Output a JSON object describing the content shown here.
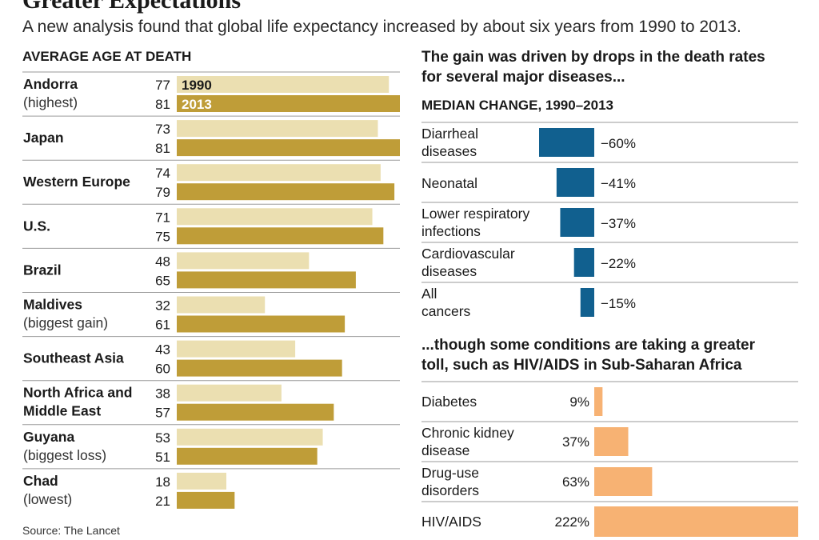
{
  "title": "Greater Expectations",
  "subtitle": "A new analysis found that global life expectancy increased by about six years from 1990 to 2013.",
  "source": "Source: The Lancet",
  "colors": {
    "bar_1990": "#ebdfb1",
    "bar_2013": "#bf9d38",
    "decline": "#11608f",
    "increase": "#f7b273",
    "rule": "#9a9a9a"
  },
  "chart_data": [
    {
      "type": "bar",
      "orientation": "horizontal",
      "title": "AVERAGE AGE AT DEATH",
      "legend": [
        "1990",
        "2013"
      ],
      "categories": [
        {
          "name": "Andorra",
          "note": "(highest)"
        },
        {
          "name": "Japan",
          "note": ""
        },
        {
          "name": "Western Europe",
          "note": ""
        },
        {
          "name": "U.S.",
          "note": ""
        },
        {
          "name": "Brazil",
          "note": ""
        },
        {
          "name": "Maldives",
          "note": "(biggest gain)"
        },
        {
          "name": "Southeast Asia",
          "note": ""
        },
        {
          "name": "North Africa and",
          "note": "Middle East"
        },
        {
          "name": "Guyana",
          "note": "(biggest loss)"
        },
        {
          "name": "Chad",
          "note": "(lowest)"
        }
      ],
      "series": [
        {
          "name": "1990",
          "values": [
            77,
            73,
            74,
            71,
            48,
            32,
            43,
            38,
            53,
            18
          ]
        },
        {
          "name": "2013",
          "values": [
            81,
            81,
            79,
            75,
            65,
            61,
            60,
            57,
            51,
            21
          ]
        }
      ],
      "xlim": [
        0,
        81
      ]
    },
    {
      "type": "bar",
      "orientation": "horizontal",
      "headline": [
        "The gain was driven by drops in the death rates",
        "for several major diseases..."
      ],
      "title": "MEDIAN CHANGE, 1990–2013",
      "categories": [
        [
          "Diarrheal",
          "diseases"
        ],
        [
          "Neonatal"
        ],
        [
          "Lower respiratory",
          "infections"
        ],
        [
          "Cardiovascular",
          "diseases"
        ],
        [
          "All",
          "cancers"
        ]
      ],
      "values": [
        -60,
        -41,
        -37,
        -22,
        -15
      ],
      "labels": [
        "−60%",
        "−41%",
        "−37%",
        "−22%",
        "−15%"
      ]
    },
    {
      "type": "bar",
      "orientation": "horizontal",
      "headline": [
        "...though some conditions are taking a greater",
        "toll, such as HIV/AIDS in Sub-Saharan Africa"
      ],
      "categories": [
        [
          "Diabetes"
        ],
        [
          "Chronic kidney",
          "disease"
        ],
        [
          "Drug-use",
          "disorders"
        ],
        [
          "HIV/AIDS"
        ]
      ],
      "values": [
        9,
        37,
        63,
        222
      ],
      "labels": [
        "9%",
        "37%",
        "63%",
        "222%"
      ]
    }
  ]
}
